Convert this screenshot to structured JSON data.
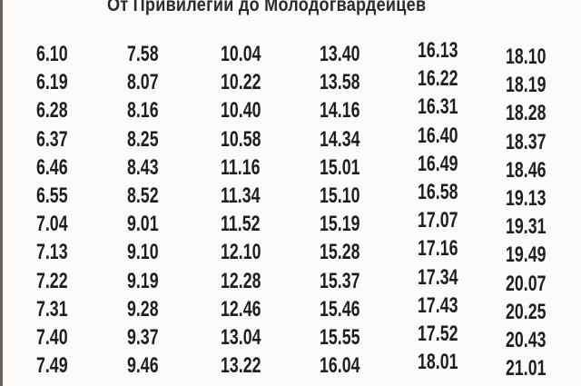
{
  "title": "От Привилегии до Молодогвардейцев",
  "columns": [
    [
      "6.10",
      "6.19",
      "6.28",
      "6.37",
      "6.46",
      "6.55",
      "7.04",
      "7.13",
      "7.22",
      "7.31",
      "7.40",
      "7.49"
    ],
    [
      "7.58",
      "8.07",
      "8.16",
      "8.25",
      "8.43",
      "8.52",
      "9.01",
      "9.10",
      "9.19",
      "9.28",
      "9.37",
      "9.46"
    ],
    [
      "10.04",
      "10.22",
      "10.40",
      "10.58",
      "11.16",
      "11.34",
      "11.52",
      "12.10",
      "12.28",
      "12.46",
      "13.04",
      "13.22"
    ],
    [
      "13.40",
      "13.58",
      "14.16",
      "14.34",
      "15.01",
      "15.10",
      "15.19",
      "15.28",
      "15.37",
      "15.46",
      "15.55",
      "16.04"
    ],
    [
      "16.13",
      "16.22",
      "16.31",
      "16.40",
      "16.49",
      "16.58",
      "17.07",
      "17.16",
      "17.34",
      "17.43",
      "17.52",
      "18.01"
    ],
    [
      "18.10",
      "18.19",
      "18.28",
      "18.37",
      "18.46",
      "19.13",
      "19.31",
      "19.49",
      "20.07",
      "20.25",
      "20.43",
      "21.01"
    ]
  ]
}
